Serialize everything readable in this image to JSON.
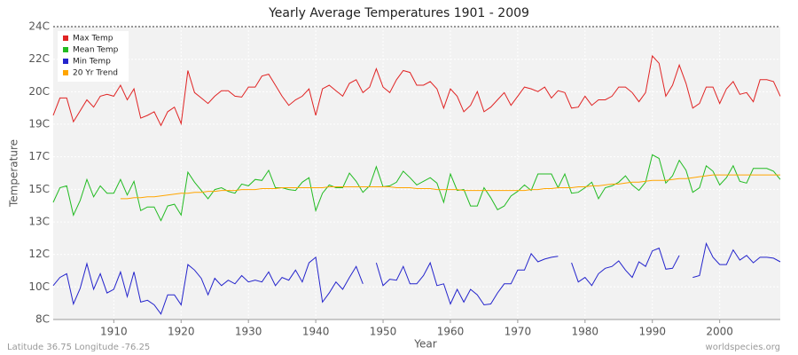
{
  "chart_data": {
    "type": "line",
    "title": "Yearly Average Temperatures 1901 - 2009",
    "x_label": "Year",
    "y_label": "Temperature",
    "footer_left": "Latitude 36.75 Longitude -76.25",
    "footer_right": "worldspecies.org",
    "x": [
      1901,
      1902,
      1903,
      1904,
      1905,
      1906,
      1907,
      1908,
      1909,
      1910,
      1911,
      1912,
      1913,
      1914,
      1915,
      1916,
      1917,
      1918,
      1919,
      1920,
      1921,
      1922,
      1923,
      1924,
      1925,
      1926,
      1927,
      1928,
      1929,
      1930,
      1931,
      1932,
      1933,
      1934,
      1935,
      1936,
      1937,
      1938,
      1939,
      1940,
      1941,
      1942,
      1943,
      1944,
      1945,
      1946,
      1947,
      1948,
      1949,
      1950,
      1951,
      1952,
      1953,
      1954,
      1955,
      1956,
      1957,
      1958,
      1959,
      1960,
      1961,
      1962,
      1963,
      1964,
      1965,
      1966,
      1967,
      1968,
      1969,
      1970,
      1971,
      1972,
      1973,
      1974,
      1975,
      1976,
      1977,
      1978,
      1979,
      1980,
      1981,
      1982,
      1983,
      1984,
      1985,
      1986,
      1987,
      1988,
      1989,
      1990,
      1991,
      1992,
      1993,
      1994,
      1995,
      1996,
      1997,
      1998,
      1999,
      2000,
      2001,
      2002,
      2003,
      2004,
      2005,
      2006,
      2007,
      2008,
      2009
    ],
    "series": [
      {
        "name": "Max Temp",
        "color": "#e02424",
        "values": [
          19.15,
          20.1,
          20.1,
          18.8,
          19.4,
          20.0,
          19.6,
          20.2,
          20.3,
          20.2,
          20.8,
          20.0,
          20.6,
          19.0,
          19.15,
          19.35,
          18.6,
          19.35,
          19.6,
          18.7,
          21.6,
          20.4,
          20.1,
          19.8,
          20.2,
          20.5,
          20.5,
          20.2,
          20.15,
          20.7,
          20.7,
          21.3,
          21.4,
          20.8,
          20.2,
          19.7,
          20.0,
          20.2,
          20.6,
          19.15,
          20.6,
          20.8,
          20.5,
          20.2,
          20.9,
          21.1,
          20.4,
          20.7,
          21.7,
          20.7,
          20.4,
          21.1,
          21.6,
          21.5,
          20.8,
          20.8,
          21.0,
          20.6,
          19.55,
          20.6,
          20.2,
          19.35,
          19.7,
          20.45,
          19.35,
          19.6,
          20.0,
          20.4,
          19.7,
          20.2,
          20.7,
          20.6,
          20.45,
          20.7,
          20.1,
          20.5,
          20.4,
          19.55,
          19.6,
          20.2,
          19.7,
          20.0,
          20.0,
          20.2,
          20.7,
          20.7,
          20.4,
          19.9,
          20.4,
          22.4,
          22.0,
          20.2,
          20.8,
          21.9,
          20.9,
          19.55,
          19.8,
          20.7,
          20.7,
          19.8,
          20.6,
          21.0,
          20.3,
          20.4,
          19.9,
          21.1,
          21.1,
          21.0,
          20.2
        ]
      },
      {
        "name": "Mean Temp",
        "color": "#22bb22",
        "values": [
          14.4,
          15.2,
          15.3,
          13.7,
          14.5,
          15.65,
          14.7,
          15.3,
          14.9,
          14.9,
          15.65,
          14.8,
          15.55,
          13.95,
          14.15,
          14.15,
          13.4,
          14.2,
          14.3,
          13.7,
          16.05,
          15.5,
          15.05,
          14.6,
          15.1,
          15.2,
          15.0,
          14.9,
          15.4,
          15.3,
          15.65,
          15.6,
          16.15,
          15.2,
          15.2,
          15.1,
          15.05,
          15.5,
          15.75,
          13.95,
          14.9,
          15.35,
          15.2,
          15.2,
          16.0,
          15.55,
          14.95,
          15.3,
          16.35,
          15.25,
          15.3,
          15.5,
          16.1,
          15.75,
          15.35,
          15.55,
          15.75,
          15.45,
          14.4,
          15.95,
          15.05,
          15.1,
          14.2,
          14.2,
          15.2,
          14.65,
          14.0,
          14.2,
          14.75,
          15.0,
          15.35,
          15.05,
          15.95,
          15.95,
          15.95,
          15.2,
          15.95,
          14.9,
          14.95,
          15.2,
          15.5,
          14.6,
          15.2,
          15.3,
          15.5,
          15.85,
          15.35,
          15.05,
          15.5,
          17.0,
          16.8,
          15.45,
          15.85,
          16.7,
          16.15,
          14.95,
          15.2,
          16.4,
          16.1,
          15.35,
          15.75,
          16.4,
          15.55,
          15.45,
          16.25,
          16.25,
          16.25,
          16.1,
          15.65
        ]
      },
      {
        "name": "Min Temp",
        "color": "#2424cc",
        "values": [
          9.85,
          10.3,
          10.5,
          8.85,
          9.7,
          11.05,
          9.65,
          10.5,
          9.45,
          9.65,
          10.6,
          9.25,
          10.6,
          8.95,
          9.05,
          8.8,
          8.3,
          9.35,
          9.35,
          8.8,
          11.0,
          10.7,
          10.25,
          9.35,
          10.25,
          9.85,
          10.15,
          9.95,
          10.4,
          10.05,
          10.15,
          10.05,
          10.6,
          9.85,
          10.3,
          10.15,
          10.7,
          10.05,
          11.1,
          11.4,
          8.95,
          9.45,
          10.05,
          9.65,
          10.3,
          10.9,
          9.95,
          null,
          11.1,
          9.85,
          10.2,
          10.15,
          10.9,
          9.95,
          9.95,
          10.4,
          11.1,
          9.85,
          9.95,
          8.85,
          9.65,
          8.95,
          9.65,
          9.35,
          8.8,
          8.85,
          9.45,
          9.95,
          9.95,
          10.7,
          10.7,
          11.6,
          11.15,
          11.3,
          11.4,
          11.45,
          null,
          11.1,
          10.05,
          10.3,
          9.85,
          10.5,
          10.8,
          10.9,
          11.2,
          10.7,
          10.3,
          11.15,
          10.9,
          11.75,
          11.9,
          10.75,
          10.8,
          11.5,
          null,
          10.3,
          10.4,
          12.15,
          11.4,
          11.0,
          11.0,
          11.8,
          11.25,
          11.5,
          11.1,
          11.4,
          11.4,
          11.35,
          11.15
        ]
      },
      {
        "name": "20 Yr Trend",
        "color": "#ffa500",
        "values": [
          null,
          null,
          null,
          null,
          null,
          null,
          null,
          null,
          null,
          null,
          14.6,
          14.6,
          14.65,
          14.65,
          14.7,
          14.7,
          14.75,
          14.8,
          14.85,
          14.9,
          14.9,
          14.95,
          14.95,
          15.0,
          15.0,
          15.05,
          15.05,
          15.05,
          15.1,
          15.1,
          15.1,
          15.15,
          15.15,
          15.15,
          15.2,
          15.2,
          15.2,
          15.2,
          15.2,
          15.2,
          15.2,
          15.25,
          15.25,
          15.25,
          15.25,
          15.25,
          15.25,
          15.25,
          15.25,
          15.25,
          15.25,
          15.2,
          15.2,
          15.2,
          15.15,
          15.15,
          15.15,
          15.1,
          15.1,
          15.1,
          15.1,
          15.05,
          15.05,
          15.05,
          15.05,
          15.05,
          15.05,
          15.05,
          15.05,
          15.05,
          15.05,
          15.1,
          15.1,
          15.15,
          15.15,
          15.2,
          15.2,
          15.2,
          15.25,
          15.25,
          15.3,
          15.3,
          15.35,
          15.4,
          15.4,
          15.45,
          15.5,
          15.5,
          15.55,
          15.6,
          15.6,
          15.6,
          15.65,
          15.7,
          15.7,
          15.75,
          15.8,
          15.85,
          15.9,
          15.9,
          15.9,
          15.9,
          15.9,
          15.9,
          15.9,
          15.9,
          15.9,
          15.9,
          15.9
        ]
      }
    ],
    "xlim": [
      1901,
      2009
    ],
    "xticks": [
      1910,
      1920,
      1930,
      1940,
      1950,
      1960,
      1970,
      1980,
      1990,
      2000
    ],
    "ylim": [
      8,
      24
    ],
    "yticks": [
      {
        "value": 8,
        "label": "8C"
      },
      {
        "value": 9.78,
        "label": "10C"
      },
      {
        "value": 11.56,
        "label": "12C"
      },
      {
        "value": 13.33,
        "label": "13C"
      },
      {
        "value": 15.11,
        "label": "15C"
      },
      {
        "value": 16.89,
        "label": "17C"
      },
      {
        "value": 18.67,
        "label": "19C"
      },
      {
        "value": 20.44,
        "label": "20C"
      },
      {
        "value": 22.22,
        "label": "22C"
      },
      {
        "value": 24,
        "label": "24C"
      }
    ],
    "grid": true,
    "legend": "top-left"
  }
}
